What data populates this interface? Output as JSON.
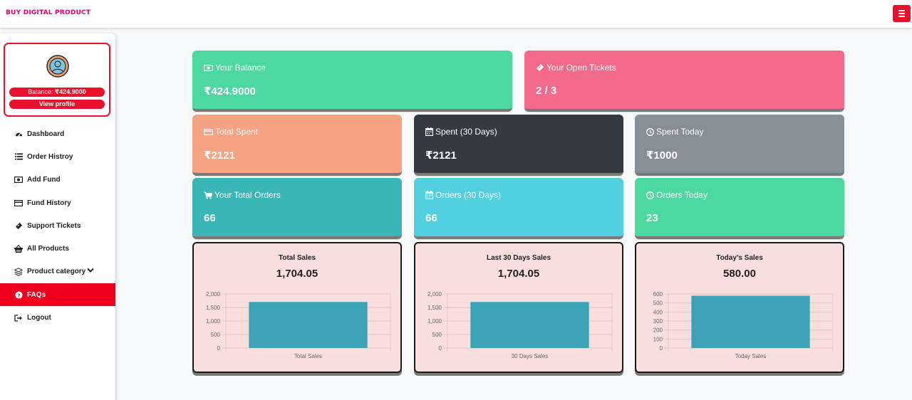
{
  "header": {
    "brand": "BUY DIGITAL PRODUCT",
    "menu_icon": "hamburger-icon",
    "accent": "#e8102a",
    "brand_color": "#e6006f"
  },
  "profile": {
    "balance_label": "Balance: ",
    "balance_value": "₹424.9000",
    "view_label": "View profile",
    "avatar_icon": "user-avatar-icon"
  },
  "sidebar": {
    "items": [
      {
        "label": "Dashboard",
        "icon": "tachometer-icon"
      },
      {
        "label": "Order Histroy",
        "icon": "list-icon"
      },
      {
        "label": "Add Fund",
        "icon": "money-icon"
      },
      {
        "label": "Fund History",
        "icon": "credit-card-icon"
      },
      {
        "label": "Support Tickets",
        "icon": "ticket-icon"
      },
      {
        "label": "All Products",
        "icon": "basket-icon"
      },
      {
        "label": "Product category",
        "icon": "layers-icon"
      },
      {
        "label": "FAQs",
        "icon": "question-circle-icon",
        "active": true
      },
      {
        "label": "Logout",
        "icon": "sign-out-icon"
      }
    ]
  },
  "cards": {
    "balance": {
      "label": "Your Balance",
      "value": "₹424.9000",
      "icon": "money-icon",
      "color": "#4cd89f"
    },
    "tickets": {
      "label": "Your Open Tickets",
      "value": "2 / 3",
      "icon": "ticket-icon",
      "color": "#f46a8b"
    },
    "total_spent": {
      "label": "Total Spent",
      "value": "₹2121",
      "icon": "credit-card-icon",
      "color": "#f6a384"
    },
    "spent_30": {
      "label": "Spent (30 Days)",
      "value": "₹2121",
      "icon": "calendar-icon",
      "color": "#343a40"
    },
    "spent_today": {
      "label": "Spent Today",
      "value": "₹1000",
      "icon": "clock-icon",
      "color": "#868e96"
    },
    "total_orders": {
      "label": "Your Total Orders",
      "value": "66",
      "icon": "cart-icon",
      "color": "#3bb6b6"
    },
    "orders_30": {
      "label": "Orders (30 Days)",
      "value": "66",
      "icon": "calendar-icon",
      "color": "#52d0e0"
    },
    "orders_today": {
      "label": "Orders Today",
      "value": "23",
      "icon": "clock-icon",
      "color": "#4cd89f"
    }
  },
  "charts": [
    {
      "title": "Total Sales",
      "value": "1,704.05"
    },
    {
      "title": "Last 30 Days Sales",
      "value": "1,704.05"
    },
    {
      "title": "Today’s Sales",
      "value": "580.00"
    }
  ],
  "chart_data": [
    {
      "type": "bar",
      "categories": [
        "Total Sales"
      ],
      "values": [
        1704.05
      ],
      "ylim": [
        0,
        2000
      ],
      "yticks": [
        0,
        500,
        1000,
        1500,
        2000
      ],
      "ytick_labels": [
        "0",
        "500",
        "1,000",
        "1,500",
        "2,000"
      ],
      "color": "#3ba3b5",
      "grid": true
    },
    {
      "type": "bar",
      "categories": [
        "30 Days Sales"
      ],
      "values": [
        1704.05
      ],
      "ylim": [
        0,
        2000
      ],
      "yticks": [
        0,
        500,
        1000,
        1500,
        2000
      ],
      "ytick_labels": [
        "0",
        "500",
        "1,000",
        "1,500",
        "2,000"
      ],
      "color": "#3ba3b5",
      "grid": true
    },
    {
      "type": "bar",
      "categories": [
        "Today Sales"
      ],
      "values": [
        580
      ],
      "ylim": [
        0,
        600
      ],
      "yticks": [
        0,
        100,
        200,
        300,
        400,
        500,
        600
      ],
      "ytick_labels": [
        "0",
        "100",
        "200",
        "300",
        "400",
        "500",
        "600"
      ],
      "color": "#3ba3b5",
      "grid": true
    }
  ]
}
